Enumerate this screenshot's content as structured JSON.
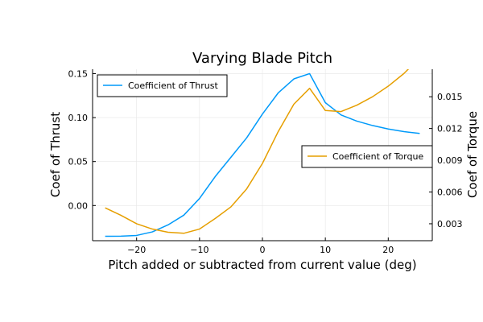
{
  "chart_data": {
    "type": "line",
    "title": "Varying Blade Pitch",
    "xlabel": "Pitch added or subtracted from current value (deg)",
    "ylabel": "Coef of Thrust",
    "y2label": "Coef of Torque",
    "xlim": [
      -27,
      27
    ],
    "ylim": [
      -0.04,
      0.155
    ],
    "y2lim": [
      0.0014,
      0.0176
    ],
    "x_ticks": [
      -20,
      -10,
      0,
      10,
      20
    ],
    "y_ticks": [
      0.0,
      0.05,
      0.1,
      0.15
    ],
    "y2_ticks": [
      0.003,
      0.006,
      0.009,
      0.012,
      0.015
    ],
    "x_tick_labels": [
      "−20",
      "−10",
      "0",
      "10",
      "20"
    ],
    "y_tick_labels": [
      "0.00",
      "0.05",
      "0.10",
      "0.15"
    ],
    "y2_tick_labels": [
      "0.003",
      "0.006",
      "0.009",
      "0.012",
      "0.015"
    ],
    "grid": true,
    "series": [
      {
        "name": "Coefficient of Thrust",
        "axis": "left",
        "color": "#009AFA",
        "legend_position": "top-left",
        "x": [
          -25,
          -22.5,
          -20,
          -17.5,
          -15,
          -12.5,
          -10,
          -7.5,
          -5,
          -2.5,
          0,
          2.5,
          5,
          7.5,
          10,
          12.5,
          15,
          17.5,
          20,
          22.5,
          25
        ],
        "y": [
          -0.035,
          -0.0348,
          -0.034,
          -0.03,
          -0.022,
          -0.011,
          0.008,
          0.033,
          0.055,
          0.077,
          0.104,
          0.128,
          0.144,
          0.15,
          0.117,
          0.103,
          0.096,
          0.091,
          0.087,
          0.084,
          0.082
        ]
      },
      {
        "name": "Coefficient of Torque",
        "axis": "right",
        "color": "#E69F00",
        "legend_position": "center-right",
        "x": [
          -25,
          -22.5,
          -20,
          -17.5,
          -15,
          -12.5,
          -10,
          -7.5,
          -5,
          -2.5,
          0,
          2.5,
          5,
          7.5,
          10,
          12.5,
          15,
          17.5,
          20,
          22.5,
          25
        ],
        "y": [
          0.0045,
          0.0038,
          0.003,
          0.0025,
          0.0022,
          0.0021,
          0.0025,
          0.0035,
          0.0046,
          0.0063,
          0.0087,
          0.0117,
          0.0143,
          0.0158,
          0.0137,
          0.0136,
          0.0142,
          0.015,
          0.016,
          0.0172,
          0.0187
        ]
      }
    ]
  }
}
